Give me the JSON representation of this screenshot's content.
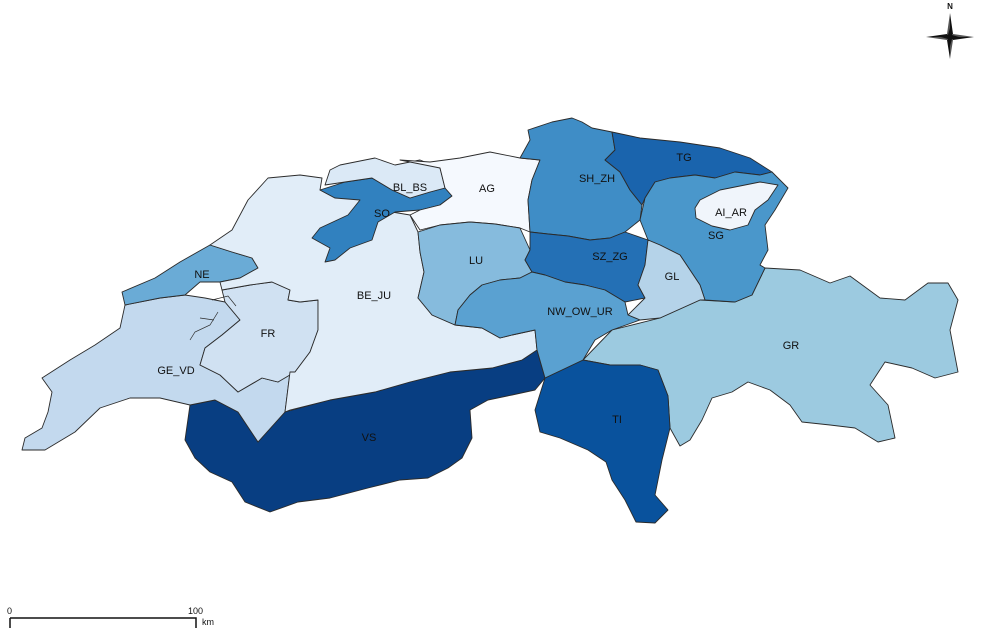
{
  "map": {
    "regions": [
      {
        "id": "GE_VD",
        "label": "GE_VD",
        "color": "#c3d9ee"
      },
      {
        "id": "NE",
        "label": "NE",
        "color": "#6aabd6"
      },
      {
        "id": "FR",
        "label": "FR",
        "color": "#d0e1f2"
      },
      {
        "id": "BE_JU",
        "label": "BE_JU",
        "color": "#e1edf8"
      },
      {
        "id": "SO",
        "label": "SO",
        "color": "#3181bf"
      },
      {
        "id": "BL_BS",
        "label": "BL_BS",
        "color": "#dbe9f6"
      },
      {
        "id": "AG",
        "label": "AG",
        "color": "#f5f9fe"
      },
      {
        "id": "LU",
        "label": "LU",
        "color": "#86bbdd"
      },
      {
        "id": "SH_ZH",
        "label": "SH_ZH",
        "color": "#3f8dc6"
      },
      {
        "id": "TG",
        "label": "TG",
        "color": "#1a64ad"
      },
      {
        "id": "AI_AR",
        "label": "AI_AR",
        "color": "#f0f5fb"
      },
      {
        "id": "SG",
        "label": "SG",
        "color": "#4a97cb"
      },
      {
        "id": "SZ_ZG",
        "label": "SZ_ZG",
        "color": "#2470b5"
      },
      {
        "id": "GL",
        "label": "GL",
        "color": "#b5d3e9"
      },
      {
        "id": "NW_OW_UR",
        "label": "NW_OW_UR",
        "color": "#5aa1d1"
      },
      {
        "id": "GR",
        "label": "GR",
        "color": "#9ccae0"
      },
      {
        "id": "VS",
        "label": "VS",
        "color": "#083e82"
      },
      {
        "id": "TI",
        "label": "TI",
        "color": "#09529d"
      }
    ],
    "border_color": "#2b2b2b"
  },
  "north_arrow": {
    "label": "N",
    "icon": "compass-rose-icon"
  },
  "scale_bar": {
    "start_label": "0",
    "end_label": "100",
    "unit_label": "km"
  }
}
